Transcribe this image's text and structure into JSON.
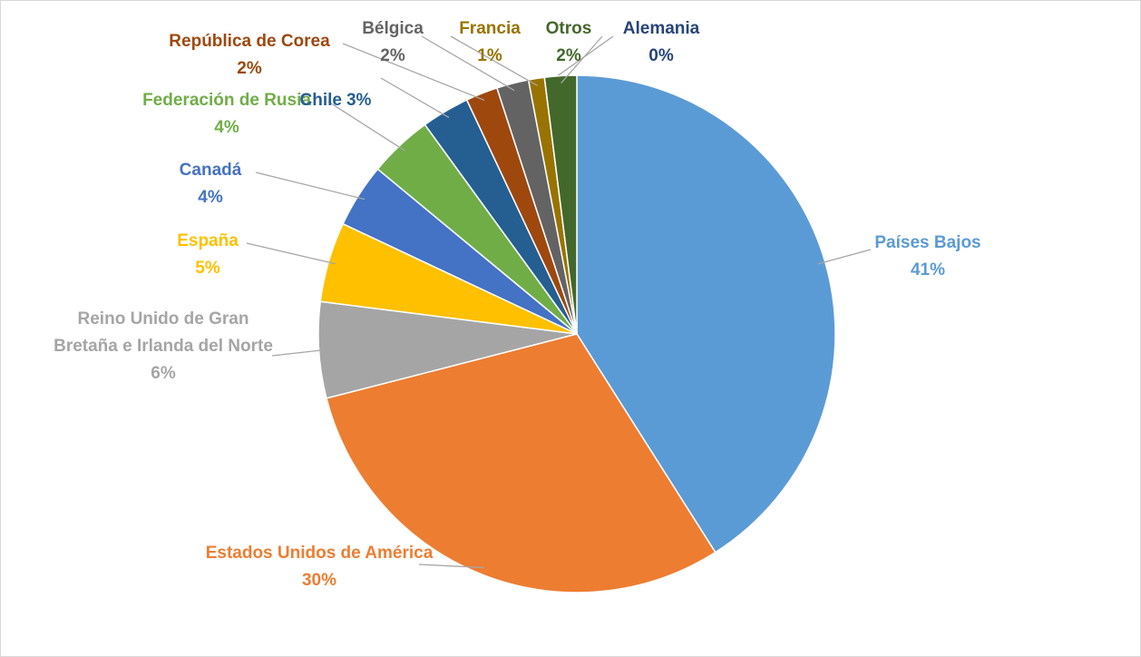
{
  "chart_data": {
    "type": "pie",
    "categories": [
      "Países Bajos",
      "Estados Unidos de América",
      "Reino Unido de Gran Bretaña e Irlanda del Norte",
      "España",
      "Canadá",
      "Federación de Rusia",
      "Chile",
      "República de Corea",
      "Bélgica",
      "Francia",
      "Alemania",
      "Otros"
    ],
    "values": [
      41,
      30,
      6,
      5,
      4,
      4,
      3,
      2,
      2,
      1,
      0,
      2
    ],
    "value_labels": [
      "41%",
      "30%",
      "6%",
      "5%",
      "4%",
      "4%",
      "3%",
      "2%",
      "2%",
      "1%",
      "0%",
      "2%"
    ],
    "colors": [
      "#5b9bd5",
      "#ed7d31",
      "#a5a5a5",
      "#ffc000",
      "#4472c4",
      "#70ad47",
      "#255e91",
      "#9e480e",
      "#636363",
      "#997300",
      "#264478",
      "#43682b"
    ]
  }
}
